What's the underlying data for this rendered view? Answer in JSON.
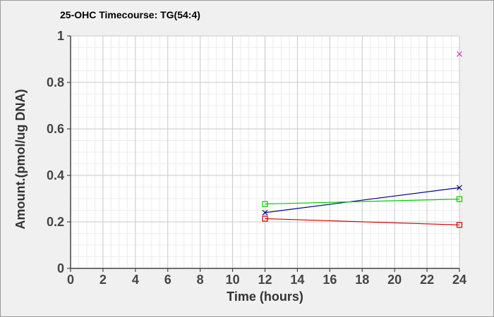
{
  "chart_data": {
    "type": "line",
    "title": "25-OHC Timecourse: TG(54:4)",
    "xlabel": "Time (hours)",
    "ylabel": "Amount.(pmol/ug DNA)",
    "xlim": [
      0,
      24
    ],
    "ylim": [
      0,
      1
    ],
    "xticks": [
      "0",
      "2",
      "4",
      "6",
      "8",
      "10",
      "12",
      "14",
      "16",
      "18",
      "20",
      "22",
      "24"
    ],
    "yticks": [
      "0",
      "0.2",
      "0.4",
      "0.6",
      "0.8",
      "1"
    ],
    "grid": true,
    "series": [
      {
        "color": "#000080",
        "marker": "x",
        "x": [
          12,
          24
        ],
        "y": [
          0.24,
          0.347
        ]
      },
      {
        "color": "#00cc00",
        "marker": "square",
        "x": [
          12,
          24
        ],
        "y": [
          0.277,
          0.298
        ]
      },
      {
        "color": "#cc0000",
        "marker": "square",
        "x": [
          12,
          24
        ],
        "y": [
          0.214,
          0.187
        ]
      },
      {
        "color": "#cc33cc",
        "marker": "x",
        "x": [
          24
        ],
        "y": [
          0.922
        ]
      }
    ]
  }
}
